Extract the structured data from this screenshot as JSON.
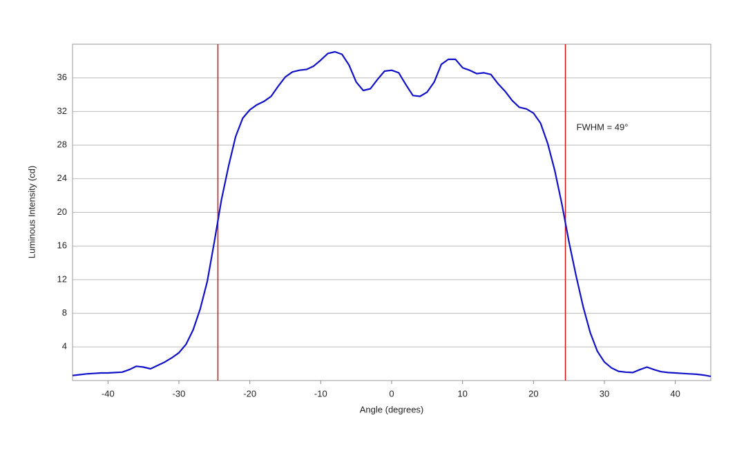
{
  "chart_data": {
    "type": "line",
    "x_label": "Angle (degrees)",
    "y_label": "Luminous Intensity (cd)",
    "annotation": "FWHM = 49°",
    "x": [
      -45,
      -44,
      -43,
      -42,
      -41,
      -40,
      -39,
      -38,
      -37,
      -36,
      -35,
      -34,
      -33,
      -32,
      -31,
      -30,
      -29,
      -28,
      -27,
      -26,
      -25,
      -24,
      -23,
      -22,
      -21,
      -20,
      -19,
      -18,
      -17,
      -16,
      -15,
      -14,
      -13,
      -12,
      -11,
      -10,
      -9,
      -8,
      -7,
      -6,
      -5,
      -4,
      -3,
      -2,
      -1,
      0,
      1,
      2,
      3,
      4,
      5,
      6,
      7,
      8,
      9,
      10,
      11,
      12,
      13,
      14,
      15,
      16,
      17,
      18,
      19,
      20,
      21,
      22,
      23,
      24,
      25,
      26,
      27,
      28,
      29,
      30,
      31,
      32,
      33,
      34,
      35,
      36,
      37,
      38,
      39,
      40,
      41,
      42,
      43,
      44,
      45
    ],
    "series": [
      {
        "name": "Luminous Intensity",
        "color": "#1010c8",
        "values": [
          0.6,
          0.7,
          0.8,
          0.85,
          0.9,
          0.9,
          0.95,
          1.0,
          1.3,
          1.7,
          1.6,
          1.4,
          1.8,
          2.2,
          2.7,
          3.3,
          4.3,
          6.0,
          8.5,
          11.8,
          16.5,
          21.5,
          25.5,
          29,
          31.2,
          32.2,
          32.8,
          33.2,
          33.8,
          35,
          36.1,
          36.7,
          36.9,
          37,
          37.4,
          38.1,
          38.9,
          39.1,
          38.8,
          37.5,
          35.5,
          34.5,
          34.7,
          35.8,
          36.8,
          36.9,
          36.6,
          35.2,
          33.9,
          33.8,
          34.3,
          35.5,
          37.6,
          38.2,
          38.2,
          37.2,
          36.9,
          36.5,
          36.6,
          36.4,
          35.3,
          34.4,
          33.3,
          32.5,
          32.3,
          31.8,
          30.6,
          28.2,
          25,
          21,
          16.5,
          12.5,
          8.8,
          5.7,
          3.5,
          2.2,
          1.5,
          1.1,
          1.0,
          0.95,
          1.3,
          1.6,
          1.3,
          1.05,
          0.95,
          0.9,
          0.85,
          0.8,
          0.75,
          0.65,
          0.5
        ]
      }
    ],
    "vlines": [
      -24.5,
      24.5
    ],
    "vline_color": "#d01010",
    "xlim": [
      -45,
      45
    ],
    "ylim": [
      0,
      40
    ],
    "xticks": [
      -40,
      -30,
      -20,
      -10,
      0,
      10,
      20,
      30,
      40
    ],
    "yticks": [
      4,
      8,
      12,
      16,
      20,
      24,
      28,
      32,
      36
    ],
    "grid": true
  }
}
